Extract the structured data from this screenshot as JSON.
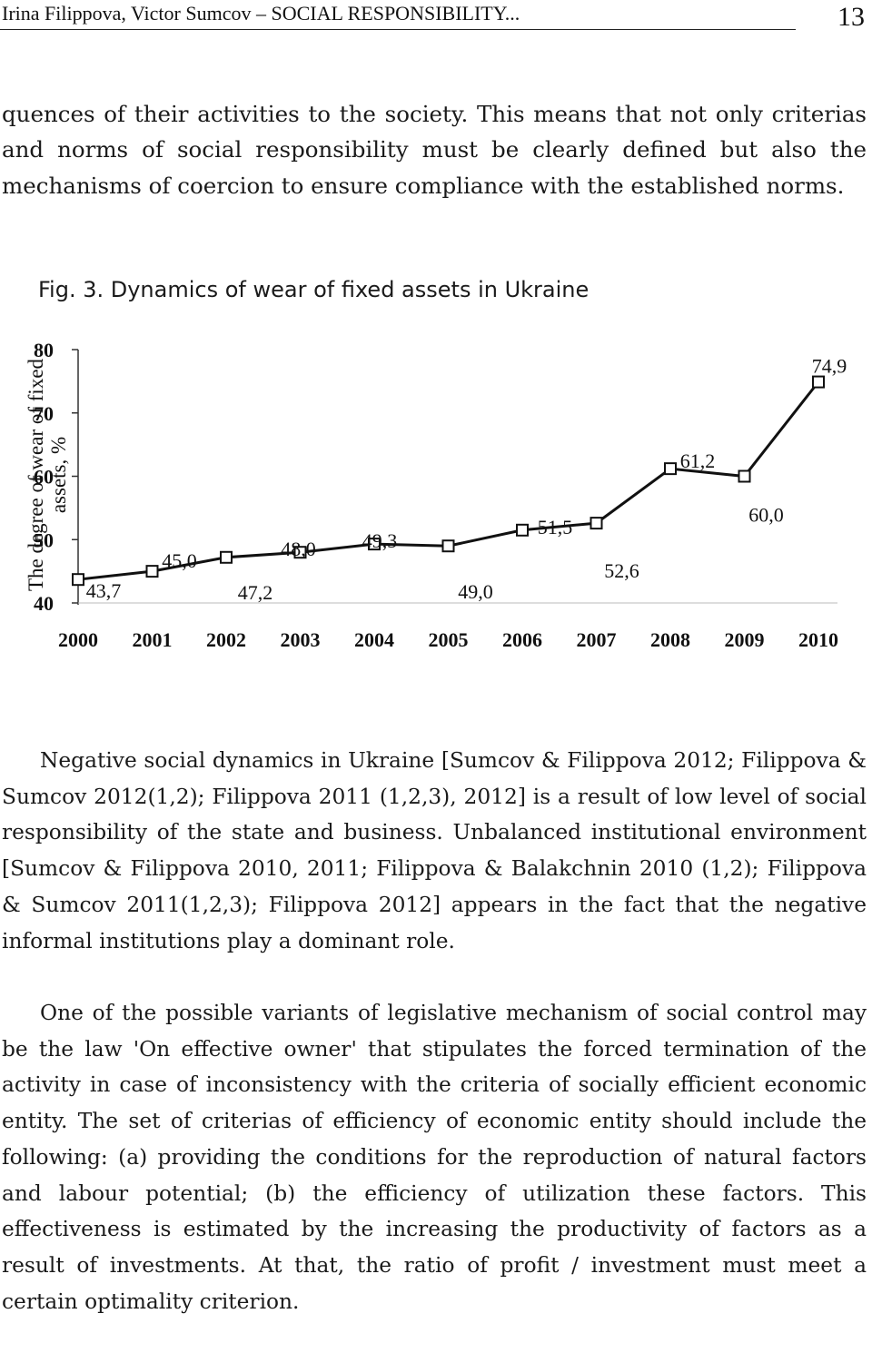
{
  "header": {
    "running_title": "Irina Filippova, Victor Sumcov – SOCIAL RESPONSIBILITY...",
    "page_number": "13"
  },
  "body": {
    "paragraph_1": "quences of their activities to the society. This means that not only criterias and norms of social responsibility must be clearly defined but also the mechanisms of coercion to ensure compliance with the established norms.",
    "figure_caption": "Fig. 3. Dynamics of wear of fixed assets in Ukraine",
    "paragraph_2": "Negative social dynamics in Ukraine [Sumcov & Filippova 2012; Filippova & Sumcov 2012(1,2); Filippova 2011 (1,2,3), 2012] is a result of low level of social responsibility of the state and business. Unbalanced institutional environment [Sumcov & Filippova 2010, 2011; Filippova & Balakchnin 2010 (1,2); Filippova & Sumcov 2011(1,2,3); Filippova 2012] appears in the fact that the negative informal institutions play a dominant role.",
    "paragraph_3": "One of the possible variants of legislative mechanism of social control may be the law 'On effective owner' that stipulates the forced termination of the activity in case of inconsistency with the criteria of socially efficient economic entity. The set of criterias of efficiency of economic entity should include the following: (a) providing the conditions for the reproduction of natural factors and labour potential; (b) the efficiency of utilization these factors. This effectiveness is estimated by the increasing the productivity of factors as a result of investments. At that, the ratio of profit / investment must meet a certain optimality criterion."
  },
  "chart_data": {
    "type": "line",
    "title": "",
    "ylabel": "The degree of wear of fixed assets, %",
    "xlabel": "",
    "x": [
      "2000",
      "2001",
      "2002",
      "2003",
      "2004",
      "2005",
      "2006",
      "2007",
      "2008",
      "2009",
      "2010"
    ],
    "values": [
      43.7,
      45.0,
      47.2,
      48.0,
      49.3,
      49.0,
      51.5,
      52.6,
      61.2,
      60.0,
      74.9
    ],
    "data_labels": [
      "43,7",
      "45,0",
      "47,2",
      "48,0",
      "49,3",
      "49,0",
      "51,5",
      "52,6",
      "61,2",
      "60,0",
      "74,9"
    ],
    "y_ticks": [
      "40",
      "50",
      "60",
      "70",
      "80"
    ],
    "ylim": [
      40,
      80
    ],
    "grid": false,
    "legend": "none",
    "marker": "hollow-square",
    "line_color": "#111111"
  }
}
